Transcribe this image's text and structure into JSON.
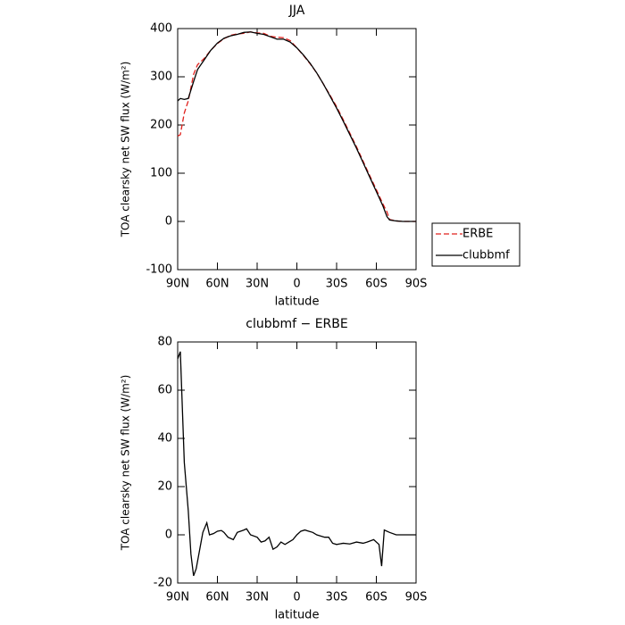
{
  "chart_data": [
    {
      "type": "line",
      "title": "JJA",
      "xlabel": "latitude",
      "ylabel": "TOA clearsky net SW flux (W/m²)",
      "x": [
        90,
        88,
        85,
        82,
        78,
        75,
        70,
        65,
        60,
        55,
        50,
        45,
        40,
        35,
        30,
        25,
        20,
        15,
        10,
        5,
        0,
        -5,
        -10,
        -15,
        -20,
        -25,
        -30,
        -35,
        -40,
        -45,
        -50,
        -55,
        -60,
        -65,
        -68,
        -70,
        -75,
        -80,
        -85,
        -90
      ],
      "series": [
        {
          "name": "ERBE",
          "color": "#e0201c",
          "dash": true,
          "values": [
            177,
            180,
            225,
            250,
            305,
            325,
            338,
            355,
            369,
            379,
            386,
            389,
            390,
            393,
            391,
            390,
            384,
            382,
            381,
            375,
            360,
            344,
            327,
            308,
            285,
            262,
            238,
            211,
            183,
            155,
            125,
            95,
            66,
            36,
            20,
            4,
            1,
            0,
            0,
            0
          ]
        },
        {
          "name": "clubbmf",
          "color": "#000000",
          "dash": false,
          "values": [
            250,
            255,
            253,
            255,
            290,
            315,
            335,
            355,
            370,
            380,
            385,
            388,
            392,
            393,
            390,
            388,
            383,
            378,
            378,
            372,
            360,
            345,
            328,
            308,
            285,
            260,
            235,
            208,
            180,
            152,
            122,
            92,
            62,
            32,
            10,
            3,
            1,
            0,
            0,
            0
          ]
        }
      ],
      "xlim": [
        90,
        -90
      ],
      "xticks": [
        {
          "value": 90,
          "label": "90N"
        },
        {
          "value": 60,
          "label": "60N"
        },
        {
          "value": 30,
          "label": "30N"
        },
        0,
        {
          "value": -30,
          "label": "30S"
        },
        {
          "value": -60,
          "label": "60S"
        },
        {
          "value": -90,
          "label": "90S"
        }
      ],
      "ylim": [
        -100,
        400
      ],
      "yticks": [
        -100,
        0,
        100,
        200,
        300,
        400
      ],
      "legend": "lower right outside"
    },
    {
      "type": "line",
      "title": "clubbmf − ERBE",
      "xlabel": "latitude",
      "ylabel": "TOA clearsky net SW flux (W/m²)",
      "x": [
        90,
        88,
        85,
        82,
        80,
        78,
        76,
        73,
        71,
        68,
        66,
        63,
        60,
        57,
        55,
        52,
        48,
        45,
        40,
        38,
        35,
        30,
        27,
        24,
        21,
        18,
        15,
        12,
        9,
        6,
        3,
        0,
        -3,
        -6,
        -9,
        -12,
        -15,
        -18,
        -21,
        -24,
        -27,
        -30,
        -35,
        -40,
        -45,
        -50,
        -53,
        -58,
        -62,
        -64,
        -66,
        -70,
        -75,
        -80,
        -85,
        -90
      ],
      "series": [
        {
          "name": "clubbmf − ERBE",
          "color": "#000000",
          "dash": false,
          "values": [
            73,
            76,
            30,
            10,
            -8,
            -17,
            -14,
            -5,
            1,
            5,
            0,
            0.5,
            1.5,
            1.8,
            1,
            -1,
            -2,
            1,
            2,
            2.5,
            0,
            -1,
            -3,
            -2.5,
            -1,
            -6,
            -5,
            -3,
            -4,
            -3,
            -2,
            0,
            1.5,
            2,
            1.5,
            1,
            0,
            -0.5,
            -1,
            -1,
            -3.5,
            -4,
            -3.5,
            -3.8,
            -3,
            -3.5,
            -3,
            -2,
            -4,
            -13,
            2,
            1,
            0,
            0,
            0,
            0
          ]
        }
      ],
      "xlim": [
        90,
        -90
      ],
      "xticks": [
        {
          "value": 90,
          "label": "90N"
        },
        {
          "value": 60,
          "label": "60N"
        },
        {
          "value": 30,
          "label": "30N"
        },
        0,
        {
          "value": -30,
          "label": "30S"
        },
        {
          "value": -60,
          "label": "60S"
        },
        {
          "value": -90,
          "label": "90S"
        }
      ],
      "ylim": [
        -20,
        80
      ],
      "yticks": [
        -20,
        0,
        20,
        40,
        60,
        80
      ]
    }
  ]
}
